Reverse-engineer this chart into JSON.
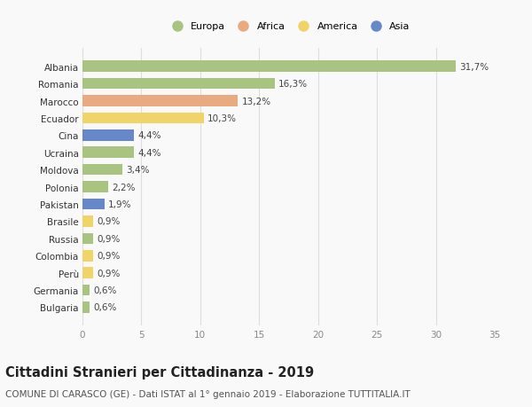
{
  "countries": [
    "Albania",
    "Romania",
    "Marocco",
    "Ecuador",
    "Cina",
    "Ucraina",
    "Moldova",
    "Polonia",
    "Pakistan",
    "Brasile",
    "Russia",
    "Colombia",
    "Perù",
    "Germania",
    "Bulgaria"
  ],
  "values": [
    31.7,
    16.3,
    13.2,
    10.3,
    4.4,
    4.4,
    3.4,
    2.2,
    1.9,
    0.9,
    0.9,
    0.9,
    0.9,
    0.6,
    0.6
  ],
  "labels": [
    "31,7%",
    "16,3%",
    "13,2%",
    "10,3%",
    "4,4%",
    "4,4%",
    "3,4%",
    "2,2%",
    "1,9%",
    "0,9%",
    "0,9%",
    "0,9%",
    "0,9%",
    "0,6%",
    "0,6%"
  ],
  "colors": [
    "#a8c480",
    "#a8c480",
    "#e8aa80",
    "#f0d468",
    "#6688c8",
    "#a8c480",
    "#a8c480",
    "#a8c480",
    "#6688c8",
    "#f0d468",
    "#a8c480",
    "#f0d468",
    "#f0d468",
    "#a8c480",
    "#a8c480"
  ],
  "legend": [
    {
      "label": "Europa",
      "color": "#a8c480"
    },
    {
      "label": "Africa",
      "color": "#e8aa80"
    },
    {
      "label": "America",
      "color": "#f0d468"
    },
    {
      "label": "Asia",
      "color": "#6688c8"
    }
  ],
  "xlim": [
    0,
    35
  ],
  "xticks": [
    0,
    5,
    10,
    15,
    20,
    25,
    30,
    35
  ],
  "title": "Cittadini Stranieri per Cittadinanza - 2019",
  "subtitle": "COMUNE DI CARASCO (GE) - Dati ISTAT al 1° gennaio 2019 - Elaborazione TUTTITALIA.IT",
  "bg_color": "#f9f9f9",
  "grid_color": "#dddddd",
  "bar_height": 0.65,
  "label_fontsize": 7.5,
  "tick_fontsize": 7.5,
  "title_fontsize": 10.5,
  "subtitle_fontsize": 7.5
}
